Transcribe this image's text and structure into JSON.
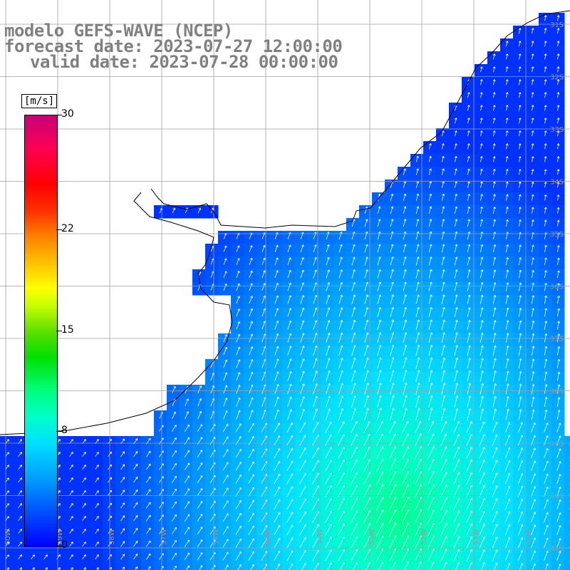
{
  "title": {
    "line1": "modelo GEFS-WAVE (NCEP)",
    "line2": "forecast date: 2023-07-27 12:00:00",
    "line3": "valid date: 2023-07-28 00:00:00"
  },
  "colorbar": {
    "unit": "[m/s]",
    "min": 0,
    "max": 30,
    "ticks": [
      {
        "value": 30,
        "label": "30"
      },
      {
        "value": 22,
        "label": "22"
      },
      {
        "value": 15,
        "label": "15"
      },
      {
        "value": 8,
        "label": "8"
      },
      {
        "value": 0,
        "label": "0"
      }
    ]
  },
  "map": {
    "field": "wind speed with direction arrows",
    "lon_labels": [
      "60W",
      "59W",
      "58W",
      "57W",
      "56W",
      "55W",
      "54W",
      "53W",
      "52W",
      "51W",
      "50W"
    ],
    "lat_labels": [
      "31S",
      "32S",
      "33S",
      "34S",
      "35S",
      "36S",
      "37S",
      "38S",
      "39S",
      "40S",
      "41S"
    ],
    "colors": {
      "land": "#ffffff",
      "grid": "#a0a0a0",
      "coast": "#000000",
      "arrow": "#ffffff",
      "title": "#808080"
    }
  }
}
